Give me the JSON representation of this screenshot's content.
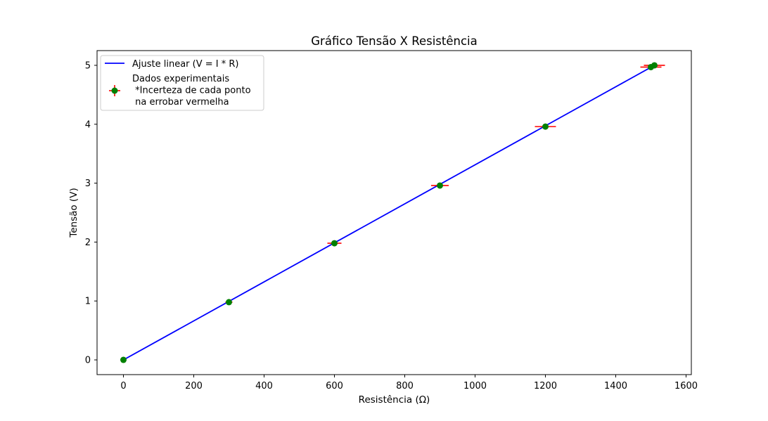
{
  "chart_data": {
    "type": "scatter",
    "title": "Gráfico Tensão X Resistência",
    "xlabel": "Resistência (Ω)",
    "ylabel": "Tensão (V)",
    "xlim": [
      -75,
      1615
    ],
    "ylim": [
      -0.25,
      5.25
    ],
    "xticks": [
      0,
      200,
      400,
      600,
      800,
      1000,
      1200,
      1400,
      1600
    ],
    "yticks": [
      0,
      1,
      2,
      3,
      4,
      5
    ],
    "grid": false,
    "legend_position": "top-left",
    "series": [
      {
        "name": "Ajuste linear (V = I * R)",
        "kind": "line",
        "color": "#0000ff",
        "x": [
          0,
          1510
        ],
        "y": [
          0,
          5.0
        ]
      },
      {
        "name": "Dados experimentais\n *Incerteza de cada ponto\n na errobar vermelha",
        "kind": "errorbar",
        "color": "#008000",
        "error_color": "#ff0000",
        "x": [
          0,
          300,
          600,
          900,
          1200,
          1500,
          1510
        ],
        "y": [
          0.0,
          0.98,
          1.98,
          2.96,
          3.96,
          4.97,
          5.0
        ],
        "x_err": [
          0,
          10,
          20,
          25,
          30,
          30,
          30
        ],
        "y_err": [
          0,
          0.01,
          0.02,
          0.02,
          0.02,
          0.02,
          0.02
        ]
      }
    ]
  }
}
